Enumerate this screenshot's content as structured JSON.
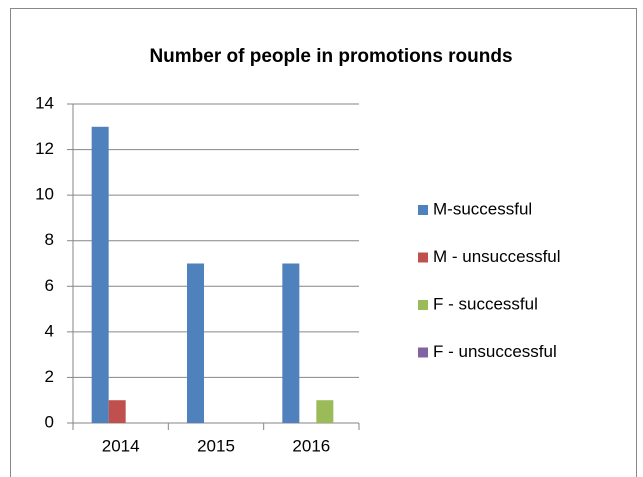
{
  "chart_data": {
    "type": "bar",
    "title": "Number of people in promotions rounds",
    "categories": [
      "2014",
      "2015",
      "2016"
    ],
    "series": [
      {
        "name": "M-successful",
        "color": "#4f81bd",
        "values": [
          13,
          7,
          7
        ]
      },
      {
        "name": "M - unsuccessful",
        "color": "#c0504d",
        "values": [
          1,
          0,
          0
        ]
      },
      {
        "name": "F - successful",
        "color": "#9bbb59",
        "values": [
          0,
          0,
          1
        ]
      },
      {
        "name": "F - unsuccessful",
        "color": "#8064a2",
        "values": [
          0,
          0,
          0
        ]
      }
    ],
    "ylim": [
      0,
      14
    ],
    "yticks": [
      0,
      2,
      4,
      6,
      8,
      10,
      12,
      14
    ],
    "grid": true,
    "legend": "right"
  }
}
